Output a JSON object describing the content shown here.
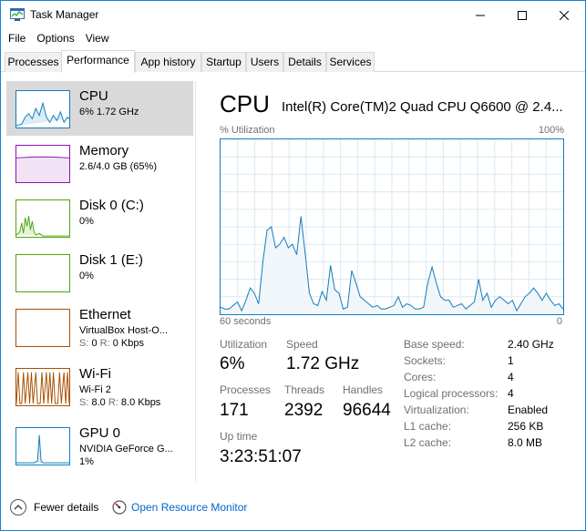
{
  "window": {
    "title": "Task Manager",
    "icon": "task-manager-icon",
    "controls": {
      "minimize": "minimize-icon",
      "maximize": "maximize-icon",
      "close": "close-icon"
    }
  },
  "menu": [
    "File",
    "Options",
    "View"
  ],
  "tabs": [
    "Processes",
    "Performance",
    "App history",
    "Startup",
    "Users",
    "Details",
    "Services"
  ],
  "active_tab": "Performance",
  "sidebar": {
    "items": [
      {
        "title": "CPU",
        "line1": "6% 1.72 GHz",
        "line2": "",
        "color": "#117dbb"
      },
      {
        "title": "Memory",
        "line1": "2.6/4.0 GB (65%)",
        "line2": "",
        "color": "#8b12ae"
      },
      {
        "title": "Disk 0 (C:)",
        "line1": "0%",
        "line2": "",
        "color": "#4da60c"
      },
      {
        "title": "Disk 1 (E:)",
        "line1": "0%",
        "line2": "",
        "color": "#4da60c"
      },
      {
        "title": "Ethernet",
        "line1": "VirtualBox Host-O...",
        "line2_label_s": "S:",
        "line2_s": "0",
        "line2_label_r": "R:",
        "line2_r": "0 Kbps",
        "color": "#a74f01"
      },
      {
        "title": "Wi-Fi",
        "line1": "Wi-Fi 2",
        "line2_label_s": "S:",
        "line2_s": "8.0",
        "line2_label_r": "R:",
        "line2_r": "8.0 Kbps",
        "color": "#a74f01"
      },
      {
        "title": "GPU 0",
        "line1": "NVIDIA GeForce G...",
        "line2": "1%",
        "color": "#117dbb"
      }
    ]
  },
  "main": {
    "title": "CPU",
    "subtitle": "Intel(R) Core(TM)2 Quad CPU Q6600 @ 2.4...",
    "graph_label": "% Utilization",
    "graph_max": "100%",
    "graph_time": "60 seconds",
    "graph_min": "0",
    "stats": {
      "utilization_label": "Utilization",
      "utilization": "6%",
      "speed_label": "Speed",
      "speed": "1.72 GHz",
      "processes_label": "Processes",
      "processes": "171",
      "threads_label": "Threads",
      "threads": "2392",
      "handles_label": "Handles",
      "handles": "96644",
      "uptime_label": "Up time",
      "uptime": "3:23:51:07"
    },
    "specs": [
      {
        "label": "Base speed:",
        "value": "2.40 GHz"
      },
      {
        "label": "Sockets:",
        "value": "1"
      },
      {
        "label": "Cores:",
        "value": "4"
      },
      {
        "label": "Logical processors:",
        "value": "4"
      },
      {
        "label": "Virtualization:",
        "value": "Enabled"
      },
      {
        "label": "L1 cache:",
        "value": "256 KB"
      },
      {
        "label": "L2 cache:",
        "value": "8.0 MB"
      }
    ]
  },
  "chart_data": {
    "type": "area",
    "ylim": [
      0,
      100
    ],
    "values": [
      4,
      3,
      3,
      5,
      7,
      2,
      8,
      15,
      12,
      6,
      30,
      48,
      50,
      38,
      40,
      44,
      38,
      40,
      34,
      56,
      35,
      12,
      6,
      5,
      13,
      8,
      28,
      14,
      12,
      3,
      4,
      25,
      18,
      10,
      8,
      6,
      4,
      5,
      3,
      3,
      4,
      5,
      10,
      4,
      6,
      5,
      3,
      3,
      4,
      18,
      27,
      18,
      10,
      8,
      8,
      4,
      5,
      6,
      3,
      5,
      7,
      20,
      8,
      12,
      4,
      8,
      10,
      8,
      6,
      8,
      2,
      6,
      10,
      12,
      15,
      12,
      8,
      12,
      8,
      5,
      6,
      3
    ],
    "spikes": [
      [
        46,
        12
      ],
      [
        48,
        28
      ],
      [
        50,
        46
      ],
      [
        52,
        48
      ],
      [
        54,
        14
      ]
    ]
  },
  "footer": {
    "fewer_details": "Fewer details",
    "open_resource_monitor": "Open Resource Monitor"
  }
}
